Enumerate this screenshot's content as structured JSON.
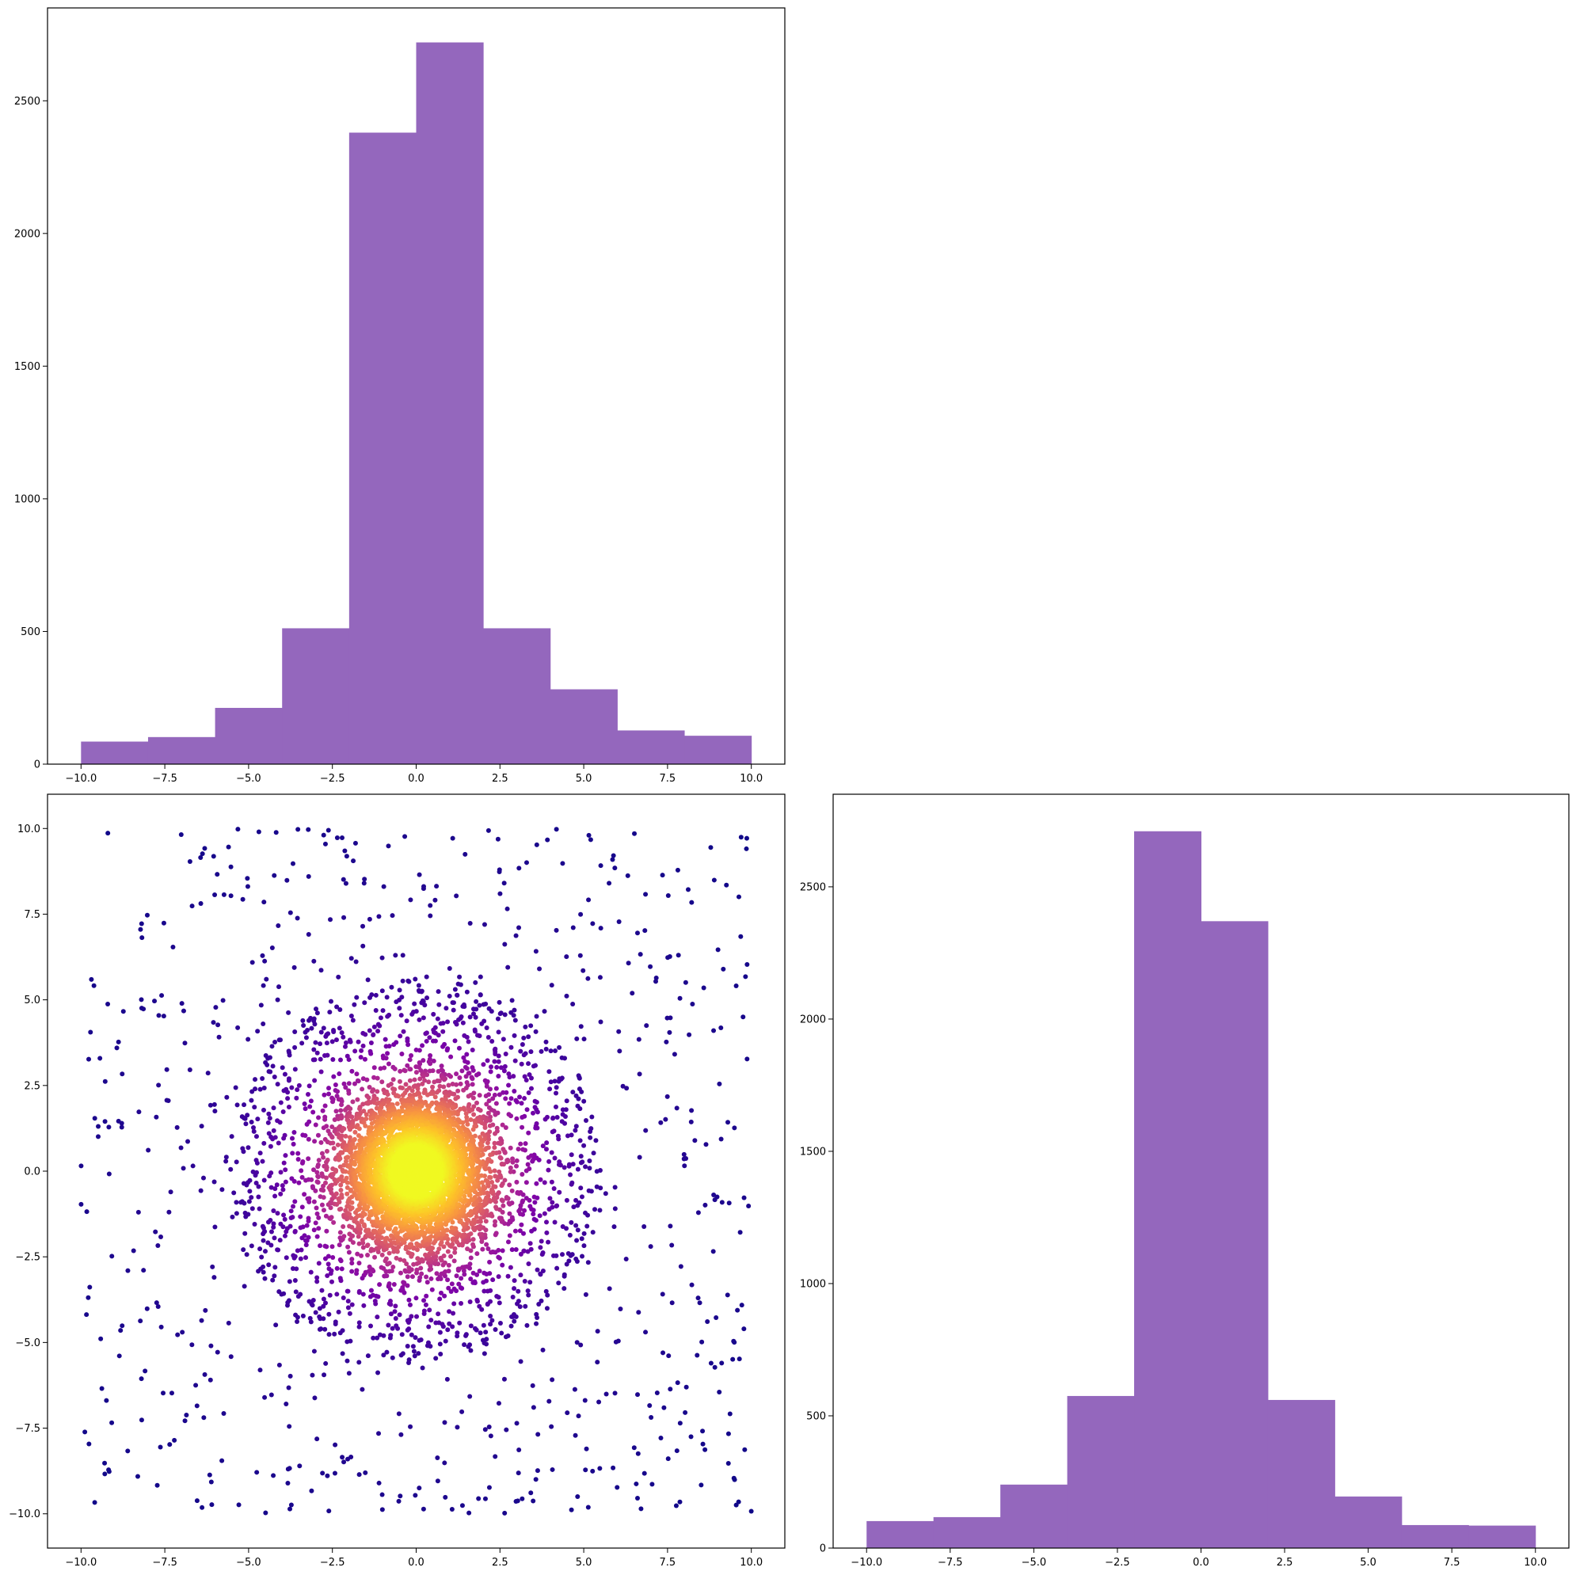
{
  "chart_data": [
    {
      "type": "bar",
      "panel": "top-left",
      "title": "",
      "xlabel": "",
      "ylabel": "",
      "xlim": [
        -11,
        11
      ],
      "ylim": [
        0,
        2850
      ],
      "bar_color": "#9467bd",
      "bin_edges": [
        -10,
        -8,
        -6,
        -4,
        -2,
        0,
        2,
        4,
        6,
        8,
        10
      ],
      "values": [
        85,
        102,
        212,
        512,
        2380,
        2720,
        512,
        282,
        127,
        107
      ],
      "xticks": [
        -10.0,
        -7.5,
        -5.0,
        -2.5,
        0.0,
        2.5,
        5.0,
        7.5,
        10.0
      ],
      "xtick_labels": [
        "−10.0",
        "−7.5",
        "−5.0",
        "−2.5",
        "0.0",
        "2.5",
        "5.0",
        "7.5",
        "10.0"
      ],
      "yticks": [
        0,
        500,
        1000,
        1500,
        2000,
        2500
      ],
      "ytick_labels": [
        "0",
        "500",
        "1000",
        "1500",
        "2000",
        "2500"
      ]
    },
    {
      "type": "scatter",
      "panel": "bottom-left",
      "title": "",
      "xlabel": "",
      "ylabel": "",
      "xlim": [
        -11,
        11
      ],
      "ylim": [
        -11,
        11
      ],
      "colormap": "plasma",
      "color_encoding": "point density",
      "n_points": 6500,
      "distribution": "dense central cluster at (0, 0) with uniform background over [-10, 10]",
      "center": [
        0,
        0
      ],
      "xticks": [
        -10.0,
        -7.5,
        -5.0,
        -2.5,
        0.0,
        2.5,
        5.0,
        7.5,
        10.0
      ],
      "xtick_labels": [
        "−10.0",
        "−7.5",
        "−5.0",
        "−2.5",
        "0.0",
        "2.5",
        "5.0",
        "7.5",
        "10.0"
      ],
      "yticks": [
        -10.0,
        -7.5,
        -5.0,
        -2.5,
        0.0,
        2.5,
        5.0,
        7.5,
        10.0
      ],
      "ytick_labels": [
        "−10.0",
        "−7.5",
        "−5.0",
        "−2.5",
        "0.0",
        "2.5",
        "5.0",
        "7.5",
        "10.0"
      ]
    },
    {
      "type": "bar",
      "panel": "bottom-right",
      "title": "",
      "xlabel": "",
      "ylabel": "",
      "xlim": [
        -11,
        11
      ],
      "ylim": [
        0,
        2850
      ],
      "bar_color": "#9467bd",
      "bin_edges": [
        -10,
        -8,
        -6,
        -4,
        -2,
        0,
        2,
        4,
        6,
        8,
        10
      ],
      "values": [
        102,
        117,
        240,
        575,
        2710,
        2370,
        560,
        195,
        87,
        85
      ],
      "xticks": [
        -10.0,
        -7.5,
        -5.0,
        -2.5,
        0.0,
        2.5,
        5.0,
        7.5,
        10.0
      ],
      "xtick_labels": [
        "−10.0",
        "−7.5",
        "−5.0",
        "−2.5",
        "0.0",
        "2.5",
        "5.0",
        "7.5",
        "10.0"
      ],
      "yticks": [
        0,
        500,
        1000,
        1500,
        2000,
        2500
      ],
      "ytick_labels": [
        "0",
        "500",
        "1000",
        "1500",
        "2000",
        "2500"
      ]
    }
  ]
}
